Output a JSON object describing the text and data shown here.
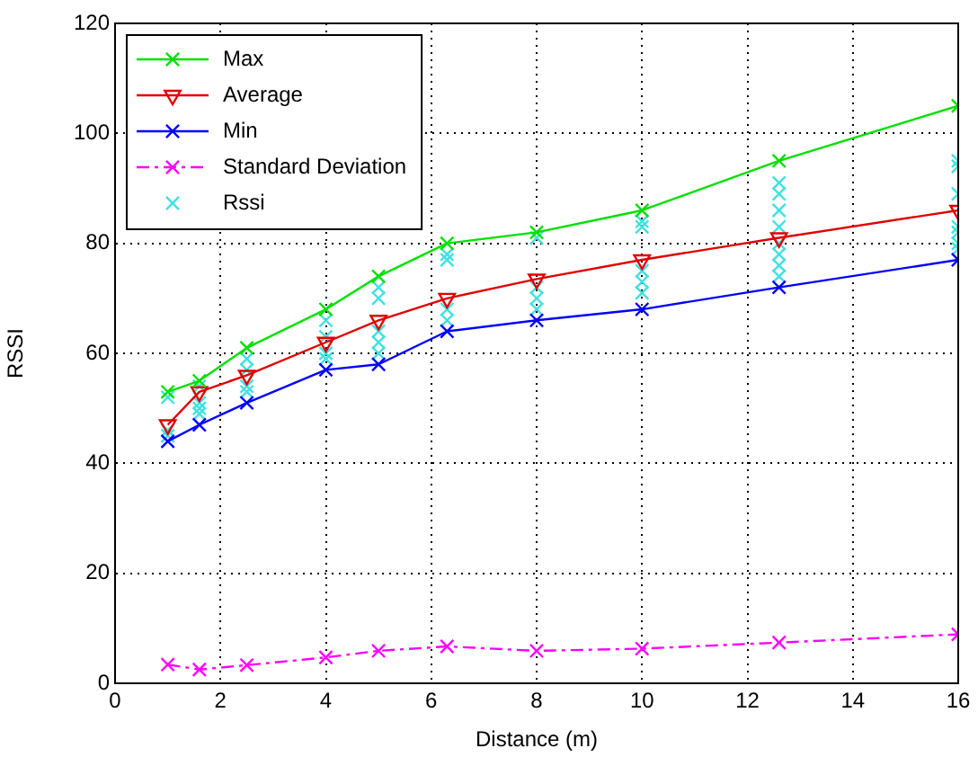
{
  "chart_data": {
    "type": "line",
    "xlabel": "Distance (m)",
    "ylabel": "RSSI",
    "xlim": [
      0,
      16
    ],
    "xticks": [
      0,
      2,
      4,
      6,
      8,
      10,
      12,
      14,
      16
    ],
    "ylim": [
      0,
      120
    ],
    "yticks": [
      0,
      20,
      40,
      60,
      80,
      100,
      120
    ],
    "grid": true,
    "legend": "top left",
    "series": [
      {
        "name": "Max",
        "color": "#00e000",
        "marker": "cross",
        "line_style": "solid",
        "x": [
          1,
          1.6,
          2.5,
          4,
          5,
          6.3,
          8,
          10,
          12.6,
          16
        ],
        "values": [
          53,
          55,
          61,
          68,
          74,
          80,
          82,
          86,
          95,
          105
        ]
      },
      {
        "name": "Average",
        "color": "#e00000",
        "marker": "triangle",
        "line_style": "solid",
        "x": [
          1,
          1.6,
          2.5,
          4,
          5,
          6.3,
          8,
          10,
          12.6,
          16
        ],
        "values": [
          47,
          53,
          56,
          62,
          66,
          70,
          73.5,
          77,
          81,
          86
        ]
      },
      {
        "name": "Min",
        "color": "#0000ff",
        "marker": "cross",
        "line_style": "solid",
        "x": [
          1,
          1.6,
          2.5,
          4,
          5,
          6.3,
          8,
          10,
          12.6,
          16
        ],
        "values": [
          44,
          47,
          51,
          57,
          58,
          64,
          66,
          68,
          72,
          77
        ]
      },
      {
        "name": "Standard Deviation",
        "color": "#ff00ff",
        "marker": "cross",
        "line_style": "dashed",
        "x": [
          1,
          1.6,
          2.5,
          4,
          5,
          6.3,
          8,
          10,
          12.6,
          16
        ],
        "values": [
          3.4,
          2.5,
          3.3,
          4.7,
          5.9,
          6.7,
          5.9,
          6.3,
          7.4,
          8.9
        ]
      },
      {
        "name": "Rssi",
        "type": "scatter",
        "color": "#40e0e0",
        "marker": "cross",
        "x": [
          1,
          1,
          1,
          1.6,
          1.6,
          1.6,
          1.6,
          2.5,
          2.5,
          2.5,
          2.5,
          4,
          4,
          4,
          4,
          5,
          5,
          5,
          5,
          5,
          6.3,
          6.3,
          6.3,
          6.3,
          8,
          8,
          8,
          8,
          10,
          10,
          10,
          10,
          10,
          12.6,
          12.6,
          12.6,
          12.6,
          12.6,
          12.6,
          12.6,
          12.6,
          16,
          16,
          16,
          16,
          16,
          16,
          16
        ],
        "values": [
          52,
          46,
          45,
          54,
          51,
          50,
          49,
          59,
          57,
          54,
          53,
          66,
          63,
          60,
          59,
          72,
          70,
          64,
          62,
          60,
          78,
          77,
          68,
          66,
          81,
          72,
          70,
          68,
          84,
          83,
          75,
          73,
          71,
          91,
          89,
          86,
          83,
          80,
          78,
          76,
          74,
          95,
          94,
          89,
          83,
          82,
          80,
          79
        ]
      }
    ]
  }
}
